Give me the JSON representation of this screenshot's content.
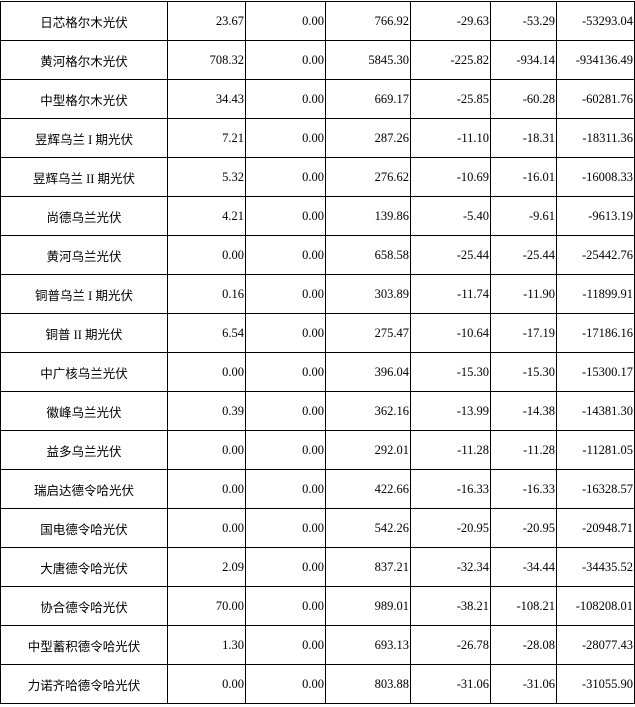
{
  "table": {
    "rows": [
      [
        "日芯格尔木光伏",
        "23.67",
        "0.00",
        "766.92",
        "-29.63",
        "-53.29",
        "-53293.04"
      ],
      [
        "黄河格尔木光伏",
        "708.32",
        "0.00",
        "5845.30",
        "-225.82",
        "-934.14",
        "-934136.49"
      ],
      [
        "中型格尔木光伏",
        "34.43",
        "0.00",
        "669.17",
        "-25.85",
        "-60.28",
        "-60281.76"
      ],
      [
        "昱辉乌兰 I 期光伏",
        "7.21",
        "0.00",
        "287.26",
        "-11.10",
        "-18.31",
        "-18311.36"
      ],
      [
        "昱辉乌兰 II 期光伏",
        "5.32",
        "0.00",
        "276.62",
        "-10.69",
        "-16.01",
        "-16008.33"
      ],
      [
        "尚德乌兰光伏",
        "4.21",
        "0.00",
        "139.86",
        "-5.40",
        "-9.61",
        "-9613.19"
      ],
      [
        "黄河乌兰光伏",
        "0.00",
        "0.00",
        "658.58",
        "-25.44",
        "-25.44",
        "-25442.76"
      ],
      [
        "铜普乌兰 I 期光伏",
        "0.16",
        "0.00",
        "303.89",
        "-11.74",
        "-11.90",
        "-11899.91"
      ],
      [
        "铜普 II 期光伏",
        "6.54",
        "0.00",
        "275.47",
        "-10.64",
        "-17.19",
        "-17186.16"
      ],
      [
        "中广核乌兰光伏",
        "0.00",
        "0.00",
        "396.04",
        "-15.30",
        "-15.30",
        "-15300.17"
      ],
      [
        "徽峰乌兰光伏",
        "0.39",
        "0.00",
        "362.16",
        "-13.99",
        "-14.38",
        "-14381.30"
      ],
      [
        "益多乌兰光伏",
        "0.00",
        "0.00",
        "292.01",
        "-11.28",
        "-11.28",
        "-11281.05"
      ],
      [
        "瑞启达德令哈光伏",
        "0.00",
        "0.00",
        "422.66",
        "-16.33",
        "-16.33",
        "-16328.57"
      ],
      [
        "国电德令哈光伏",
        "0.00",
        "0.00",
        "542.26",
        "-20.95",
        "-20.95",
        "-20948.71"
      ],
      [
        "大唐德令哈光伏",
        "2.09",
        "0.00",
        "837.21",
        "-32.34",
        "-34.44",
        "-34435.52"
      ],
      [
        "协合德令哈光伏",
        "70.00",
        "0.00",
        "989.01",
        "-38.21",
        "-108.21",
        "-108208.01"
      ],
      [
        "中型蓄积德令哈光伏",
        "1.30",
        "0.00",
        "693.13",
        "-26.78",
        "-28.08",
        "-28077.43"
      ],
      [
        "力诺齐哈德令哈光伏",
        "0.00",
        "0.00",
        "803.88",
        "-31.06",
        "-31.06",
        "-31055.90"
      ]
    ]
  }
}
